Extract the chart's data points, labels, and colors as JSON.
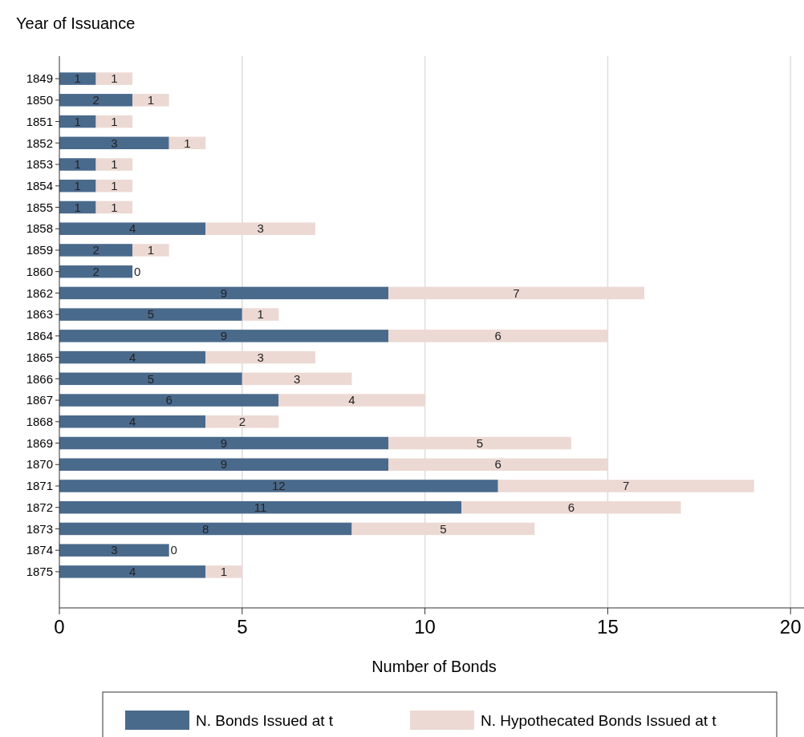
{
  "chart_data": {
    "type": "bar",
    "orientation": "horizontal",
    "stacked": true,
    "data_labels": true,
    "grid": "x",
    "legend": "bottom",
    "xlabel": "Number of Bonds",
    "ylabel": "Year of Issuance",
    "categories": [
      "1849",
      "1850",
      "1851",
      "1852",
      "1853",
      "1854",
      "1855",
      "1858",
      "1859",
      "1860",
      "1862",
      "1863",
      "1864",
      "1865",
      "1866",
      "1867",
      "1868",
      "1869",
      "1870",
      "1871",
      "1872",
      "1873",
      "1874",
      "1875"
    ],
    "xlim": [
      0,
      20.5
    ],
    "xticks": [
      0,
      5,
      10,
      15,
      20
    ],
    "series": [
      {
        "name": "N. Bonds Issued at t",
        "color": "#4a6a8c",
        "values": [
          1,
          2,
          1,
          3,
          1,
          1,
          1,
          4,
          2,
          2,
          9,
          5,
          9,
          4,
          5,
          6,
          4,
          9,
          9,
          12,
          11,
          8,
          3,
          4
        ]
      },
      {
        "name": "N. Hypothecated Bonds Issued at t",
        "color": "#ecd9d3",
        "values": [
          1,
          1,
          1,
          1,
          1,
          1,
          1,
          3,
          1,
          0,
          7,
          1,
          6,
          3,
          3,
          4,
          2,
          5,
          6,
          7,
          6,
          5,
          0,
          1
        ]
      }
    ]
  }
}
